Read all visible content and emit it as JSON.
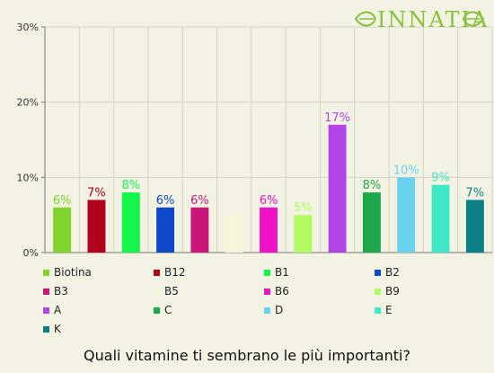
{
  "brand": {
    "logo_text": "INNATIA",
    "accent": "#8bbf3f"
  },
  "question": "Quali vitamine ti sembrano le più importanti?",
  "chart_data": {
    "type": "bar",
    "categories": [
      "Biotina",
      "B12",
      "B1",
      "B2",
      "B3",
      "B5",
      "B6",
      "B9",
      "A",
      "C",
      "D",
      "E",
      "K"
    ],
    "values": [
      6,
      7,
      8,
      6,
      6,
      5,
      6,
      5,
      17,
      8,
      10,
      9,
      7
    ],
    "value_labels": [
      "6%",
      "7%",
      "8%",
      "6%",
      "6%",
      "",
      "6%",
      "5%",
      "17%",
      "8%",
      "10%",
      "9%",
      "7%"
    ],
    "colors": [
      "#7fd52b",
      "#b0001c",
      "#16f54a",
      "#1048cc",
      "#cc1578",
      "#f5f7da",
      "#f012c6",
      "#b2fa62",
      "#b345e8",
      "#1ea84c",
      "#6ad2ec",
      "#3ce8c8",
      "#0a7f86"
    ],
    "y_ticks": [
      "0%",
      "10%",
      "20%",
      "30%"
    ],
    "y_tick_values": [
      0,
      10,
      20,
      30
    ],
    "ylim": [
      0,
      30
    ],
    "grid": true,
    "legend_position": "bottom"
  }
}
